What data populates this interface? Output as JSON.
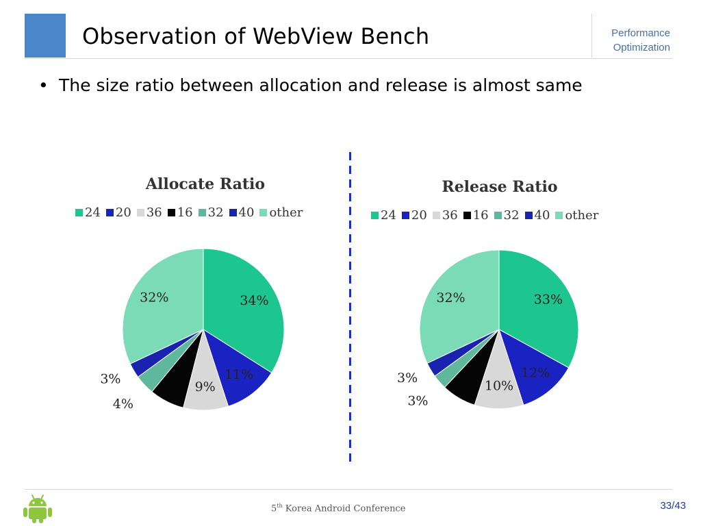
{
  "slide": {
    "title": "Observation of WebView Bench",
    "section_label_line1": "Performance",
    "section_label_line2": "Optimization",
    "bullet_text": "The size ratio between allocation and release is almost same",
    "bullet_marker": "•",
    "footer_ordinal": "5",
    "footer_ordinal_suffix": "th",
    "footer_text": " Korea Android Conference",
    "page_current": "33",
    "page_total": "43",
    "page_separator": "/"
  },
  "colors": {
    "header_block": "#4a86c8",
    "divider_dashes": "#1530d6",
    "android_green": "#8ec63f"
  },
  "chart_data": [
    {
      "type": "pie",
      "title": "Allocate Ratio",
      "categories": [
        "24",
        "20",
        "36",
        "16",
        "32",
        "40",
        "other"
      ],
      "values": [
        34,
        11,
        9,
        7,
        4,
        3,
        32
      ],
      "labels": [
        "34%",
        "11%",
        "9%",
        "",
        "4%",
        "3%",
        "32%"
      ],
      "colors": [
        "#1ec68f",
        "#1a22c2",
        "#d8d8d8",
        "#050505",
        "#5fb89b",
        "#1a22b0",
        "#7adbb6"
      ],
      "legend_position": "top"
    },
    {
      "type": "pie",
      "title": "Release Ratio",
      "categories": [
        "24",
        "20",
        "36",
        "16",
        "32",
        "40",
        "other"
      ],
      "values": [
        33,
        12,
        10,
        7,
        3,
        3,
        32
      ],
      "labels": [
        "33%",
        "12%",
        "10%",
        "",
        "3%",
        "3%",
        "32%"
      ],
      "colors": [
        "#1ec68f",
        "#1a22c2",
        "#d8d8d8",
        "#050505",
        "#5fb89b",
        "#1a22b0",
        "#7adbb6"
      ],
      "legend_position": "top"
    }
  ]
}
